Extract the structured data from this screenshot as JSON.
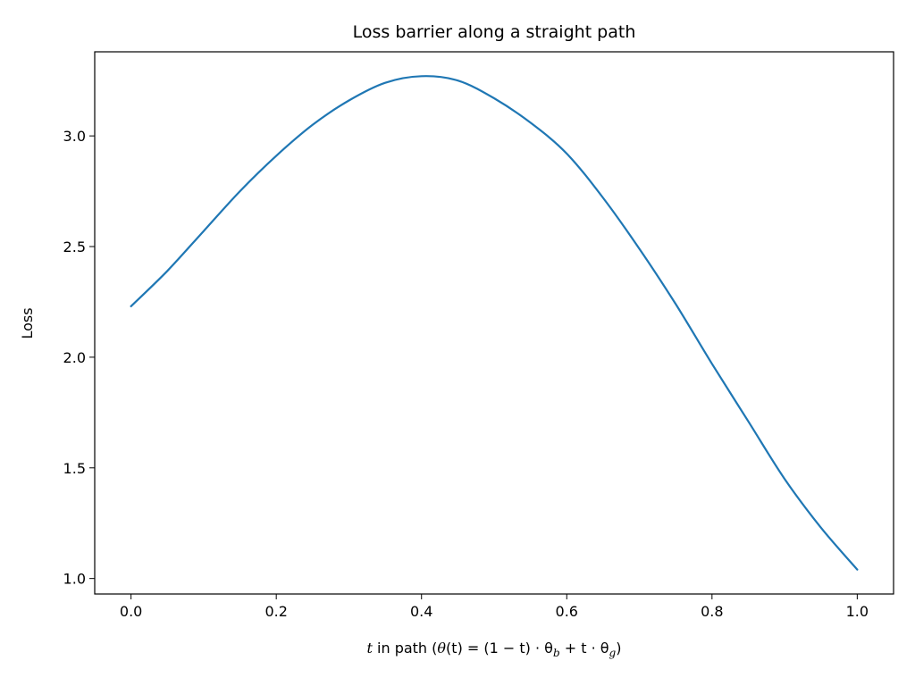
{
  "chart_data": {
    "type": "line",
    "title": "Loss barrier along a straight path",
    "xlabel": {
      "var": "t",
      "text_mid": " in path (",
      "theta": "θ",
      "formula": "(t) = (1 − t) · θ",
      "sub_b": "b",
      "plus": " + t · θ",
      "sub_g": "g",
      "close": ")"
    },
    "ylabel": "Loss",
    "xlim": [
      -0.05,
      1.05
    ],
    "ylim": [
      0.93,
      3.38
    ],
    "x_ticks": [
      0.0,
      0.2,
      0.4,
      0.6,
      0.8,
      1.0
    ],
    "x_tick_labels": [
      "0.0",
      "0.2",
      "0.4",
      "0.6",
      "0.8",
      "1.0"
    ],
    "y_ticks": [
      1.0,
      1.5,
      2.0,
      2.5,
      3.0
    ],
    "y_tick_labels": [
      "1.0",
      "1.5",
      "2.0",
      "2.5",
      "3.0"
    ],
    "grid": false,
    "series": [
      {
        "color": "#1f77b4",
        "x": [
          0.0,
          0.05,
          0.1,
          0.15,
          0.2,
          0.25,
          0.3,
          0.35,
          0.4,
          0.45,
          0.5,
          0.55,
          0.6,
          0.65,
          0.7,
          0.75,
          0.8,
          0.85,
          0.9,
          0.95,
          1.0
        ],
        "y": [
          2.23,
          2.39,
          2.57,
          2.75,
          2.91,
          3.05,
          3.16,
          3.24,
          3.27,
          3.25,
          3.17,
          3.06,
          2.92,
          2.72,
          2.49,
          2.24,
          1.97,
          1.71,
          1.45,
          1.23,
          1.04
        ]
      }
    ]
  }
}
